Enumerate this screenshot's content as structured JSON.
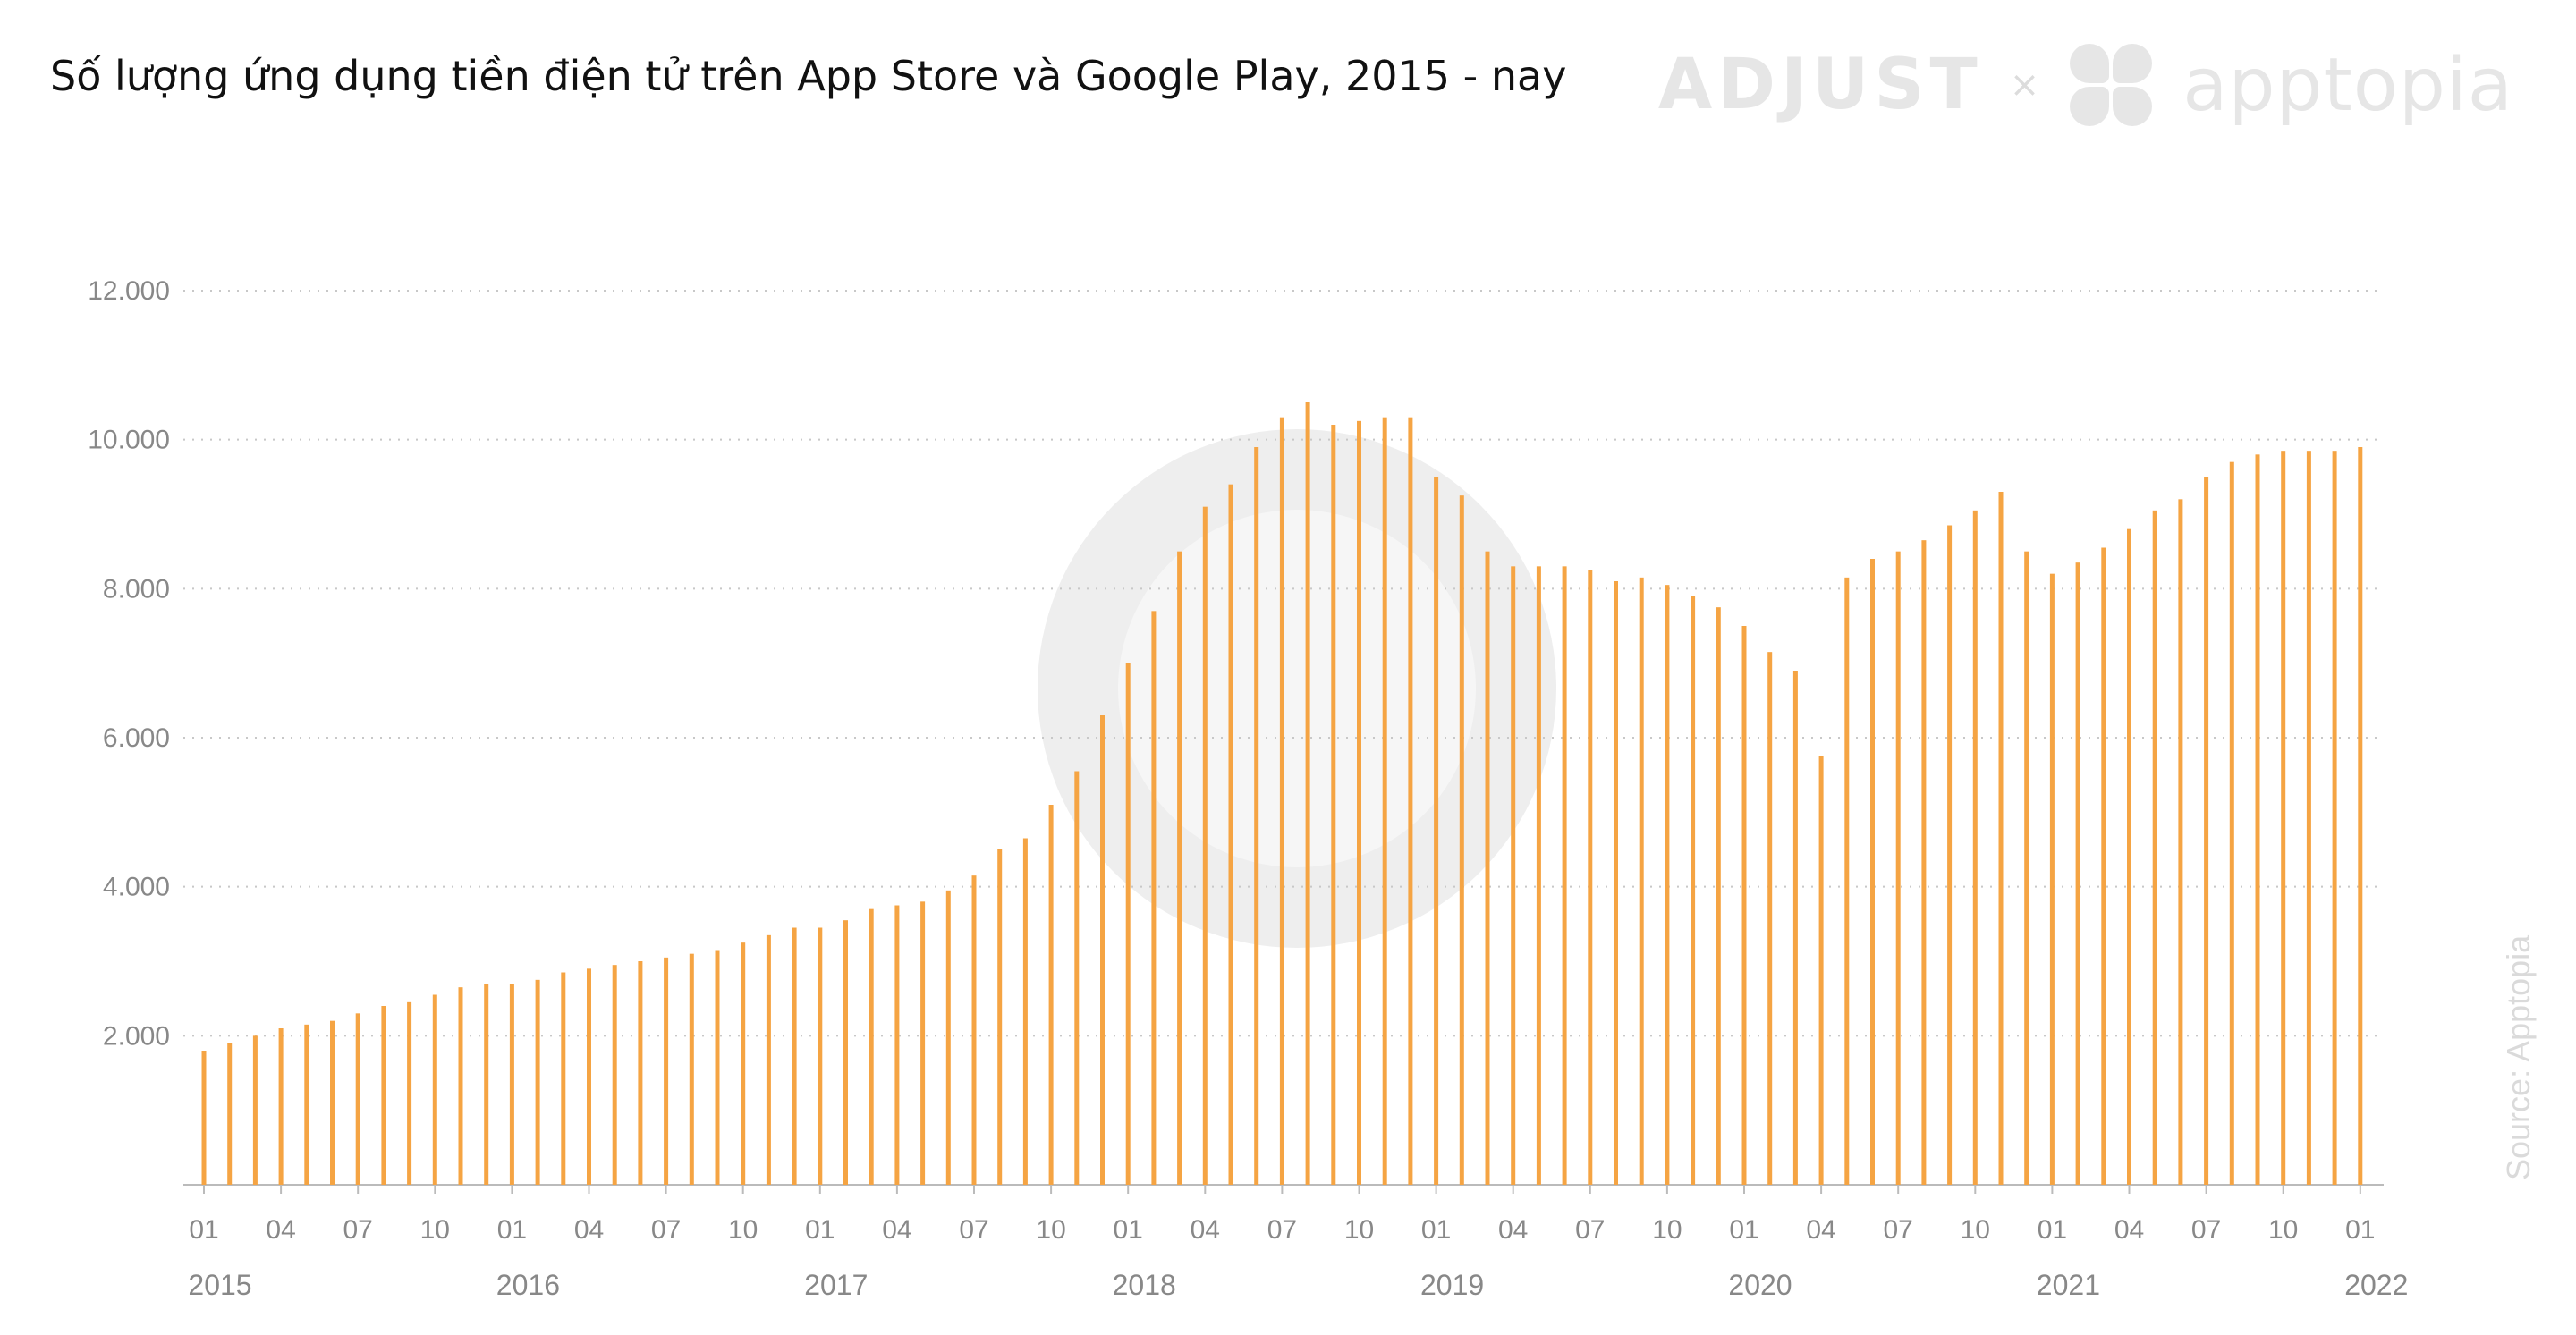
{
  "title": "Số lượng ứng dụng tiền điện tử trên App Store và Google Play, 2015 - nay",
  "brand": {
    "left": "ADJUST",
    "separator": "×",
    "right": "apptopia"
  },
  "source": "Source: Apptopia",
  "colors": {
    "bar": "#f5a443",
    "grid": "#c8c8c8",
    "axis": "#bbbbbb",
    "watermark": "#eeeeee"
  },
  "chart_data": {
    "type": "bar",
    "title": "Số lượng ứng dụng tiền điện tử trên App Store và Google Play, 2015 - nay",
    "xlabel": "",
    "ylabel": "",
    "ylim": [
      0,
      12000
    ],
    "yticks": [
      2000,
      4000,
      6000,
      8000,
      10000,
      12000
    ],
    "ytick_labels": [
      "2.000",
      "4.000",
      "6.000",
      "8.000",
      "10.000",
      "12.000"
    ],
    "grid": "horizontal dotted",
    "month_tick_labels": [
      "01",
      "04",
      "07",
      "10",
      "01",
      "04",
      "07",
      "10",
      "01",
      "04",
      "07",
      "10",
      "01",
      "04",
      "07",
      "10",
      "01",
      "04",
      "07",
      "10",
      "01",
      "04",
      "07",
      "10",
      "01",
      "04",
      "07",
      "10",
      "01"
    ],
    "year_labels": [
      "2015",
      "2016",
      "2017",
      "2018",
      "2019",
      "2020",
      "2021",
      "2022"
    ],
    "categories": [
      "2015-01",
      "2015-02",
      "2015-03",
      "2015-04",
      "2015-05",
      "2015-06",
      "2015-07",
      "2015-08",
      "2015-09",
      "2015-10",
      "2015-11",
      "2015-12",
      "2016-01",
      "2016-02",
      "2016-03",
      "2016-04",
      "2016-05",
      "2016-06",
      "2016-07",
      "2016-08",
      "2016-09",
      "2016-10",
      "2016-11",
      "2016-12",
      "2017-01",
      "2017-02",
      "2017-03",
      "2017-04",
      "2017-05",
      "2017-06",
      "2017-07",
      "2017-08",
      "2017-09",
      "2017-10",
      "2017-11",
      "2017-12",
      "2018-01",
      "2018-02",
      "2018-03",
      "2018-04",
      "2018-05",
      "2018-06",
      "2018-07",
      "2018-08",
      "2018-09",
      "2018-10",
      "2018-11",
      "2018-12",
      "2019-01",
      "2019-02",
      "2019-03",
      "2019-04",
      "2019-05",
      "2019-06",
      "2019-07",
      "2019-08",
      "2019-09",
      "2019-10",
      "2019-11",
      "2019-12",
      "2020-01",
      "2020-02",
      "2020-03",
      "2020-04",
      "2020-05",
      "2020-06",
      "2020-07",
      "2020-08",
      "2020-09",
      "2020-10",
      "2020-11",
      "2020-12",
      "2021-01",
      "2021-02",
      "2021-03",
      "2021-04",
      "2021-05",
      "2021-06",
      "2021-07",
      "2021-08",
      "2021-09",
      "2021-10",
      "2021-11",
      "2021-12",
      "2022-01"
    ],
    "values": [
      1800,
      1900,
      2000,
      2100,
      2150,
      2200,
      2300,
      2400,
      2450,
      2550,
      2650,
      2700,
      2700,
      2750,
      2850,
      2900,
      2950,
      3000,
      3050,
      3100,
      3150,
      3250,
      3350,
      3450,
      3450,
      3550,
      3700,
      3750,
      3800,
      3950,
      4150,
      4500,
      4650,
      5100,
      5550,
      6300,
      7000,
      7700,
      8500,
      9100,
      9400,
      9900,
      10300,
      10500,
      10200,
      10250,
      10300,
      10300,
      9500,
      9250,
      8500,
      8300,
      8300,
      8300,
      8250,
      8100,
      8150,
      8050,
      7900,
      7750,
      7500,
      7150,
      6900,
      5750,
      8150,
      8400,
      8500,
      8650,
      8850,
      9050,
      9300,
      8500,
      8200,
      8350,
      8550,
      8800,
      9050,
      9200,
      9500,
      9700,
      9800,
      9850,
      9850,
      9850,
      9900
    ]
  }
}
